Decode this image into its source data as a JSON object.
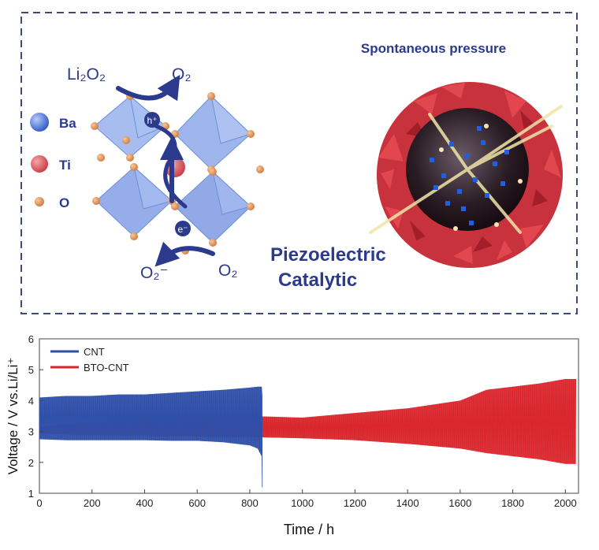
{
  "scheme": {
    "legend": [
      {
        "label": "Ba",
        "color": "#4a74e0"
      },
      {
        "label": "Ti",
        "color": "#d8505a"
      },
      {
        "label": "O",
        "color": "#e0945a"
      }
    ],
    "reactant": "Li₂O₂",
    "product_top": "O₂",
    "hole": "h⁺",
    "electron": "e⁻",
    "product_bottom": "O₂⁻",
    "reactant_bottom": "O₂",
    "title_right": "Spontaneous pressure",
    "caption_line1": "Piezoelectric",
    "caption_line2": "Catalytic",
    "text_color": "#2b3a8c"
  },
  "chart_data": {
    "type": "line",
    "xlabel": "Time / h",
    "ylabel": "Voltage / V vs.Li/Li⁺",
    "xlim": [
      0,
      2050
    ],
    "ylim": [
      1,
      6
    ],
    "xticks": [
      0,
      200,
      400,
      600,
      800,
      1000,
      1200,
      1400,
      1600,
      1800,
      2000
    ],
    "yticks": [
      1,
      2,
      3,
      4,
      5,
      6
    ],
    "legend_position": "top-left",
    "series": [
      {
        "name": "CNT",
        "color": "#2f4fa8",
        "envelope_x": [
          0,
          100,
          200,
          300,
          400,
          500,
          600,
          700,
          800,
          830,
          845,
          848
        ],
        "upper": [
          4.1,
          4.15,
          4.15,
          4.2,
          4.2,
          4.25,
          4.3,
          4.35,
          4.42,
          4.45,
          4.45,
          4.2
        ],
        "lower": [
          2.75,
          2.72,
          2.72,
          2.72,
          2.72,
          2.7,
          2.7,
          2.65,
          2.55,
          2.45,
          2.2,
          1.0
        ]
      },
      {
        "name": "BTO-CNT",
        "color": "#d9262c",
        "envelope_x": [
          0,
          100,
          200,
          400,
          600,
          800,
          1000,
          1200,
          1400,
          1600,
          1700,
          1800,
          1900,
          2000,
          2040
        ],
        "upper": [
          3.15,
          3.25,
          3.3,
          3.4,
          3.45,
          3.5,
          3.45,
          3.6,
          3.75,
          4.0,
          4.35,
          4.45,
          4.55,
          4.7,
          4.7
        ],
        "lower": [
          2.95,
          2.9,
          2.88,
          2.85,
          2.83,
          2.82,
          2.78,
          2.72,
          2.6,
          2.45,
          2.3,
          2.2,
          2.1,
          1.95,
          1.95
        ]
      }
    ]
  }
}
